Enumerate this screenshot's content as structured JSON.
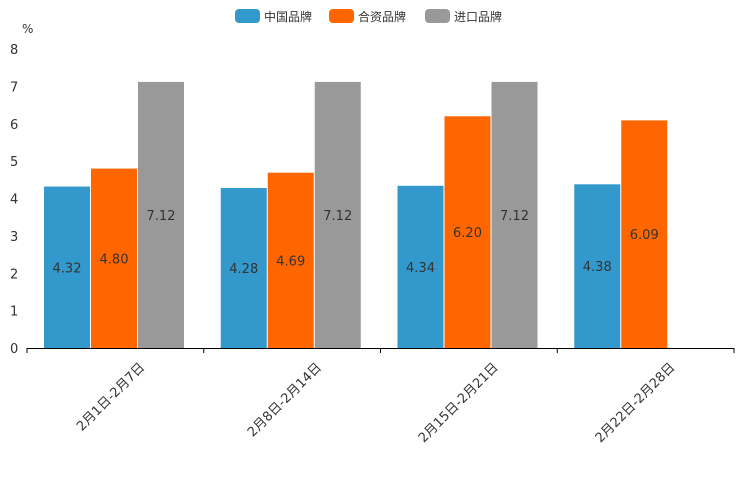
{
  "chart_data": {
    "type": "bar",
    "title": "",
    "xlabel": "",
    "ylabel": "%",
    "ylim": [
      0,
      8
    ],
    "yticks": [
      "0",
      "1",
      "2",
      "3",
      "4",
      "5",
      "6",
      "7",
      "8"
    ],
    "categories": [
      "2月1日-2月7日",
      "2月8日-2月14日",
      "2月15日-2月21日",
      "2月22日-2月28日"
    ],
    "legend_position": "top-center",
    "series": [
      {
        "name": "中国品牌",
        "color": "#3399CC",
        "values": [
          4.32,
          4.28,
          4.34,
          4.38
        ],
        "labels": [
          "4.32",
          "4.28",
          "4.34",
          "4.38"
        ]
      },
      {
        "name": "合资品牌",
        "color": "#FF6600",
        "values": [
          4.8,
          4.69,
          6.2,
          6.09
        ],
        "labels": [
          "4.80",
          "4.69",
          "6.20",
          "6.09"
        ]
      },
      {
        "name": "进口品牌",
        "color": "#999999",
        "values": [
          7.12,
          7.12,
          7.12,
          null
        ],
        "labels": [
          "7.12",
          "7.12",
          "7.12",
          null
        ]
      }
    ]
  }
}
